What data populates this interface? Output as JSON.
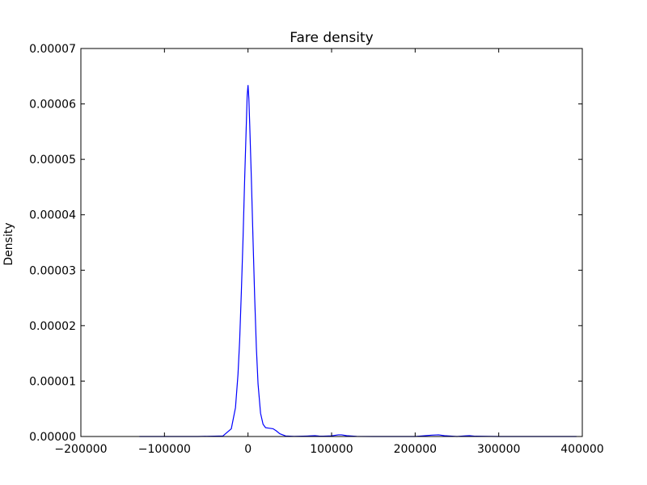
{
  "chart_data": {
    "type": "line",
    "title": "Fare density",
    "xlabel": "",
    "ylabel": "Density",
    "xlim": [
      -200000,
      400000
    ],
    "ylim": [
      0,
      7e-05
    ],
    "grid": false,
    "legend": "none",
    "x_ticks": [
      {
        "value": -200000,
        "label": "−200000"
      },
      {
        "value": -100000,
        "label": "−100000"
      },
      {
        "value": 0,
        "label": "0"
      },
      {
        "value": 100000,
        "label": "100000"
      },
      {
        "value": 200000,
        "label": "200000"
      },
      {
        "value": 300000,
        "label": "300000"
      },
      {
        "value": 400000,
        "label": "400000"
      }
    ],
    "y_ticks": [
      {
        "value": 0,
        "label": "0.00000"
      },
      {
        "value": 1e-05,
        "label": "0.00001"
      },
      {
        "value": 2e-05,
        "label": "0.00002"
      },
      {
        "value": 3e-05,
        "label": "0.00003"
      },
      {
        "value": 4e-05,
        "label": "0.00004"
      },
      {
        "value": 5e-05,
        "label": "0.00005"
      },
      {
        "value": 6e-05,
        "label": "0.00006"
      },
      {
        "value": 7e-05,
        "label": "0.00007"
      }
    ],
    "series": [
      {
        "color": "#0000ff",
        "x": [
          -130000,
          -60000,
          -30000,
          -20000,
          -15000,
          -12000,
          -10000,
          -8000,
          -6000,
          -4000,
          -2000,
          -1000,
          0,
          1000,
          2000,
          4000,
          6000,
          8000,
          10000,
          12000,
          15000,
          18000,
          21000,
          25000,
          30000,
          34000,
          38000,
          45000,
          55000,
          70000,
          80000,
          85000,
          90000,
          100000,
          108000,
          112000,
          118000,
          130000,
          150000,
          200000,
          220000,
          228000,
          235000,
          250000,
          260000,
          265000,
          272000,
          300000,
          393000
        ],
        "y": [
          0,
          0,
          1e-07,
          1.4e-06,
          5.2e-06,
          1.12e-05,
          1.73e-05,
          2.6e-05,
          3.55e-05,
          4.65e-05,
          5.65e-05,
          6.15e-05,
          6.34e-05,
          6.1e-05,
          5.65e-05,
          4.65e-05,
          3.55e-05,
          2.5e-05,
          1.6e-05,
          9.5e-06,
          4.2e-06,
          2.2e-06,
          1.6e-06,
          1.5e-06,
          1.4e-06,
          1e-06,
          5e-07,
          1e-07,
          2e-08,
          8e-08,
          1.5e-07,
          8e-08,
          5e-08,
          1.2e-07,
          3e-07,
          3e-07,
          1.5e-07,
          2e-08,
          0,
          0,
          2.5e-07,
          3e-07,
          1.5e-07,
          0,
          1.2e-07,
          1.5e-07,
          5e-08,
          0,
          0
        ]
      }
    ]
  }
}
